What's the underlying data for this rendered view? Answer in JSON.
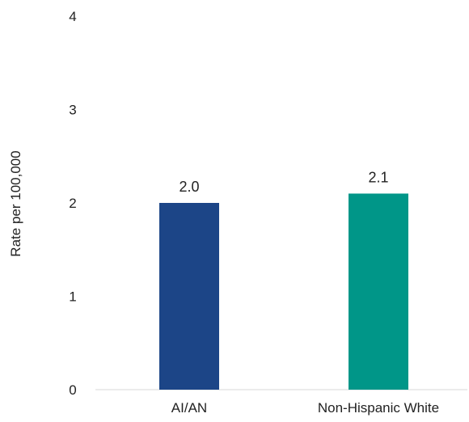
{
  "chart_data": {
    "type": "bar",
    "categories": [
      "AI/AN",
      "Non-Hispanic White"
    ],
    "values": [
      2.0,
      2.1
    ],
    "data_labels": [
      "2.0",
      "2.1"
    ],
    "colors": [
      "#1c4587",
      "#009688"
    ],
    "title": "",
    "xlabel": "",
    "ylabel": "Rate per 100,000",
    "ylim": [
      0,
      4
    ],
    "yticks": [
      "0",
      "1",
      "2",
      "3",
      "4"
    ],
    "grid": false,
    "legend": "none"
  }
}
